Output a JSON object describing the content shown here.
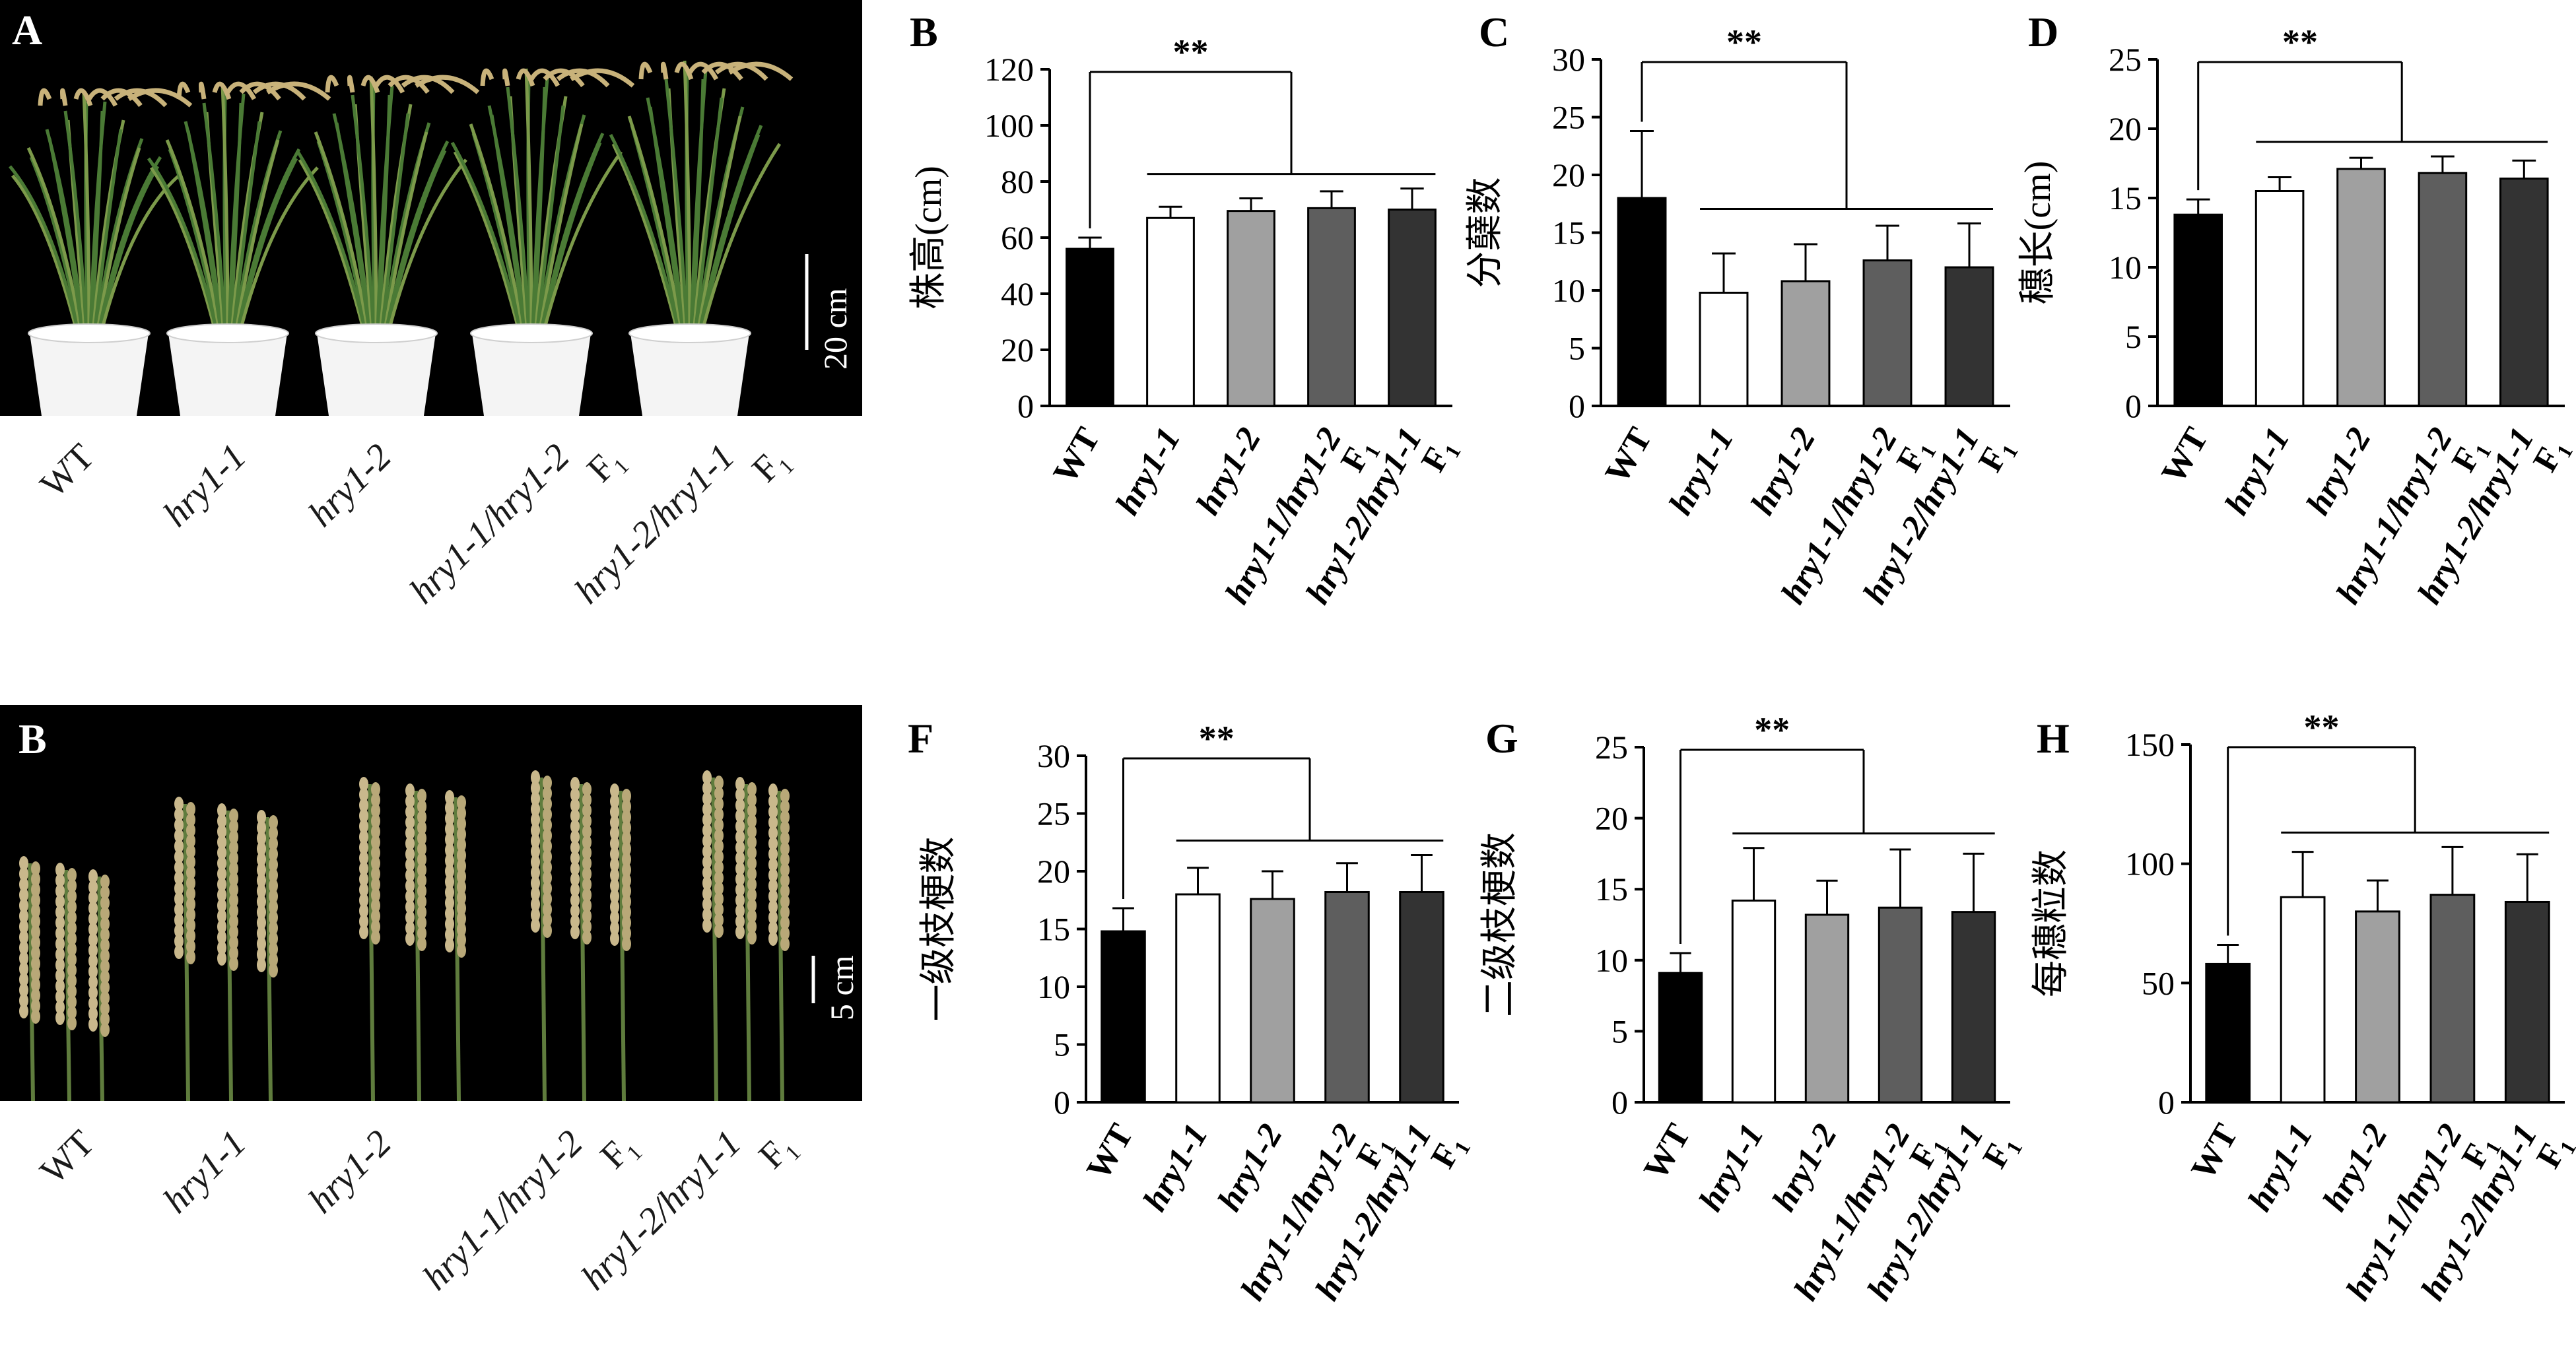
{
  "genotype_labels": [
    "WT",
    "hry1-1",
    "hry1-2",
    "hry1-1/hry1-2",
    "hry1-2/hry1-1"
  ],
  "f1_label": "F",
  "f1_sub": "1",
  "photo_panels": [
    {
      "letter": "A",
      "scale": "20 cm"
    },
    {
      "letter": "B",
      "scale": "5 cm"
    }
  ],
  "colors": {
    "bars": [
      "#000000",
      "#ffffff",
      "#a0a0a0",
      "#5e5e5e",
      "#333333"
    ]
  },
  "chart_data": [
    {
      "letter": "B",
      "type": "bar",
      "ylabel": "株高(cm)",
      "ylim": [
        0,
        120
      ],
      "ticks": [
        0,
        20,
        40,
        60,
        80,
        100,
        120
      ],
      "significance": "**",
      "values": [
        56,
        67,
        69.5,
        70.5,
        70
      ],
      "errors": [
        4,
        4,
        4.5,
        6,
        7.5
      ]
    },
    {
      "letter": "C",
      "type": "bar",
      "ylabel": "分蘖数",
      "ylim": [
        0,
        30
      ],
      "ticks": [
        0,
        5,
        10,
        15,
        20,
        25,
        30
      ],
      "significance": "**",
      "values": [
        18,
        9.8,
        10.8,
        12.6,
        12
      ],
      "errors": [
        5.8,
        3.4,
        3.2,
        3,
        3.8
      ]
    },
    {
      "letter": "D",
      "type": "bar",
      "ylabel": "穗长(cm)",
      "ylim": [
        0,
        25
      ],
      "ticks": [
        0,
        5,
        10,
        15,
        20,
        25
      ],
      "significance": "**",
      "values": [
        13.8,
        15.5,
        17.1,
        16.8,
        16.4
      ],
      "errors": [
        1.1,
        1,
        0.8,
        1.2,
        1.3
      ]
    },
    {
      "letter": "F",
      "type": "bar",
      "ylabel": "一级枝梗数",
      "ylim": [
        0,
        30
      ],
      "ticks": [
        0,
        5,
        10,
        15,
        20,
        25,
        30
      ],
      "significance": "**",
      "values": [
        14.8,
        18,
        17.6,
        18.2,
        18.2
      ],
      "errors": [
        2,
        2.3,
        2.4,
        2.5,
        3.2
      ]
    },
    {
      "letter": "G",
      "type": "bar",
      "ylabel": "二级枝梗数",
      "ylim": [
        0,
        25
      ],
      "ticks": [
        0,
        5,
        10,
        15,
        20,
        25
      ],
      "significance": "**",
      "values": [
        9.1,
        14.2,
        13.2,
        13.7,
        13.4
      ],
      "errors": [
        1.4,
        3.7,
        2.4,
        4.1,
        4.1
      ]
    },
    {
      "letter": "H",
      "type": "bar",
      "ylabel": "每穗粒数",
      "ylim": [
        0,
        150
      ],
      "ticks": [
        0,
        50,
        100,
        150
      ],
      "significance": "**",
      "values": [
        58,
        86,
        80,
        87,
        84
      ],
      "errors": [
        8,
        19,
        13,
        20,
        20
      ]
    }
  ]
}
